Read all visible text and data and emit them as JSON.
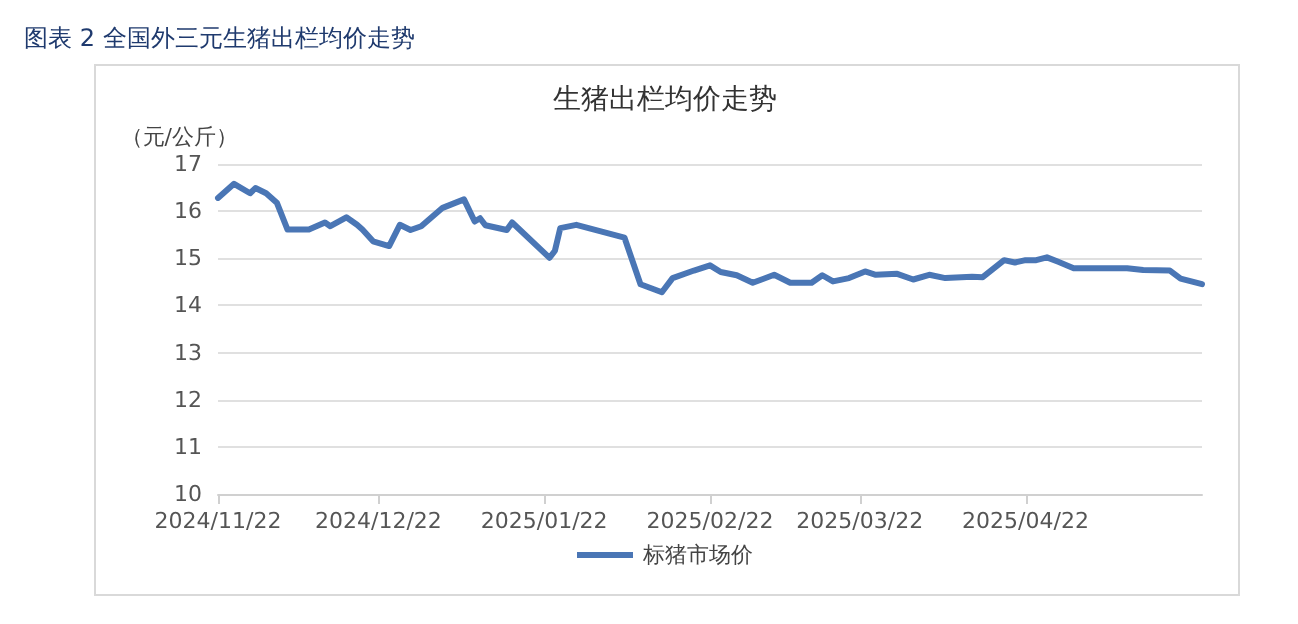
{
  "chart_data": {
    "type": "line",
    "title": "生猪出栏均价走势",
    "ylabel": "（元/公斤）",
    "annotations": [
      "图表 2  全国外三元生猪出栏均价走势"
    ],
    "x": [
      "2024-11-22",
      "2024-11-25",
      "2024-11-28",
      "2024-11-29",
      "2024-12-01",
      "2024-12-03",
      "2024-12-05",
      "2024-12-09",
      "2024-12-12",
      "2024-12-13",
      "2024-12-16",
      "2024-12-18",
      "2024-12-19",
      "2024-12-21",
      "2024-12-24",
      "2024-12-26",
      "2024-12-28",
      "2024-12-30",
      "2025-01-03",
      "2025-01-07",
      "2025-01-09",
      "2025-01-10",
      "2025-01-11",
      "2025-01-15",
      "2025-01-16",
      "2025-01-23",
      "2025-01-24",
      "2025-01-25",
      "2025-01-28",
      "2025-02-06",
      "2025-02-09",
      "2025-02-13",
      "2025-02-15",
      "2025-02-19",
      "2025-02-22",
      "2025-02-24",
      "2025-02-27",
      "2025-03-02",
      "2025-03-06",
      "2025-03-09",
      "2025-03-13",
      "2025-03-15",
      "2025-03-17",
      "2025-03-20",
      "2025-03-23",
      "2025-03-25",
      "2025-03-29",
      "2025-04-01",
      "2025-04-04",
      "2025-04-07",
      "2025-04-12",
      "2025-04-14",
      "2025-04-18",
      "2025-04-20",
      "2025-04-22",
      "2025-04-24",
      "2025-04-26",
      "2025-04-28",
      "2025-05-01",
      "2025-05-11",
      "2025-05-14",
      "2025-05-19",
      "2025-05-21",
      "2025-05-25"
    ],
    "series": [
      {
        "name": "标猪市场价",
        "color": "#4a76b5",
        "values": [
          16.28,
          16.58,
          16.38,
          16.49,
          16.38,
          16.18,
          15.61,
          15.61,
          15.76,
          15.68,
          15.87,
          15.71,
          15.61,
          15.36,
          15.26,
          15.71,
          15.6,
          15.68,
          16.07,
          16.25,
          15.78,
          15.85,
          15.7,
          15.6,
          15.76,
          15.01,
          15.16,
          15.64,
          15.71,
          15.44,
          14.45,
          14.28,
          14.58,
          14.74,
          14.85,
          14.71,
          14.64,
          14.48,
          14.65,
          14.48,
          14.48,
          14.64,
          14.51,
          14.58,
          14.72,
          14.65,
          14.67,
          14.55,
          14.65,
          14.58,
          14.61,
          14.6,
          14.96,
          14.91,
          14.96,
          14.96,
          15.02,
          14.93,
          14.79,
          14.79,
          14.75,
          14.74,
          14.57,
          14.45
        ]
      }
    ],
    "xlim": [
      "2024-11-22",
      "2025-05-25"
    ],
    "xticks": [
      {
        "value": "2024-11-22",
        "label": "2024/11/22"
      },
      {
        "value": "2024-12-22",
        "label": "2024/12/22"
      },
      {
        "value": "2025-01-22",
        "label": "2025/01/22"
      },
      {
        "value": "2025-02-22",
        "label": "2025/02/22"
      },
      {
        "value": "2025-03-22",
        "label": "2025/03/22"
      },
      {
        "value": "2025-04-22",
        "label": "2025/04/22"
      }
    ],
    "ylim": [
      10,
      17
    ],
    "yticks": [
      10,
      11,
      12,
      13,
      14,
      15,
      16,
      17
    ],
    "grid": "y",
    "legend": "bottom",
    "marker": "none",
    "line_style": "solid"
  }
}
